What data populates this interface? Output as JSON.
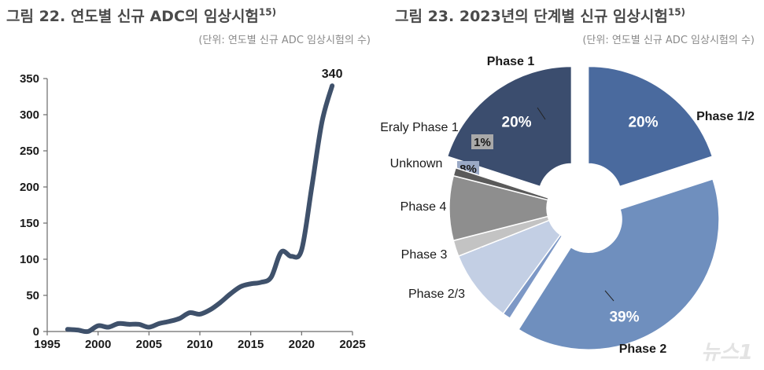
{
  "left": {
    "title_main": "그림 22. 연도별 신규 ADC의 임상시험",
    "title_sup": "15)",
    "unit": "(단위: 연도별 신규 ADC 임상시험의 수)"
  },
  "right": {
    "title_main": "그림 23. 2023년의 단계별 신규 임상시험",
    "title_sup": "15)",
    "unit": "(단위: 연도별 신규 ADC 임상시험의 수)"
  },
  "watermark": "뉴스1",
  "chart_data": [
    {
      "type": "line",
      "x": [
        1997,
        1998,
        1999,
        2000,
        2001,
        2002,
        2003,
        2004,
        2005,
        2006,
        2007,
        2008,
        2009,
        2010,
        2011,
        2012,
        2013,
        2014,
        2015,
        2016,
        2017,
        2018,
        2019,
        2020,
        2021,
        2022,
        2023
      ],
      "series": [
        {
          "values": [
            3,
            2,
            0,
            8,
            6,
            11,
            10,
            10,
            6,
            11,
            14,
            18,
            26,
            24,
            30,
            40,
            52,
            62,
            66,
            68,
            75,
            110,
            104,
            113,
            200,
            290,
            340
          ]
        }
      ],
      "annotation": "340",
      "xlim": [
        1995,
        2025
      ],
      "ylim": [
        0,
        350
      ],
      "xticks": [
        "1995",
        "2000",
        "2005",
        "2010",
        "2015",
        "2020",
        "2025"
      ],
      "yticks": [
        "0",
        "50",
        "100",
        "150",
        "200",
        "250",
        "300",
        "350"
      ],
      "line_color": "#3f516b",
      "grid": false
    },
    {
      "type": "pie",
      "donut": true,
      "slices": [
        {
          "label": "Phase 1",
          "pct_label": "20%",
          "value": 20,
          "color": "#3b4d6e",
          "explode": 18
        },
        {
          "label": "Phase 1/2",
          "pct_label": "20%",
          "value": 20,
          "color": "#4a6a9e",
          "explode": 18
        },
        {
          "label": "Phase 2",
          "pct_label": "39%",
          "value": 39,
          "color": "#6f8fbe",
          "explode": 18
        },
        {
          "label": "Phase 2/3",
          "pct_label": "1%",
          "value": 1,
          "color": "#7d98c6",
          "explode": 0
        },
        {
          "label": "Phase 3",
          "pct_label": "9%",
          "value": 9,
          "color": "#c3cfe4",
          "explode": 0
        },
        {
          "label": "Phase 4",
          "pct_label": "2%",
          "value": 2,
          "color": "#c3c3c3",
          "explode": 0
        },
        {
          "label": "Unknown",
          "pct_label": "8%",
          "value": 8,
          "color": "#8e8e8e",
          "explode": 0
        },
        {
          "label": "Eraly Phase 1",
          "pct_label": "1%",
          "value": 1,
          "color": "#5a5a5a",
          "explode": 0
        }
      ]
    }
  ]
}
